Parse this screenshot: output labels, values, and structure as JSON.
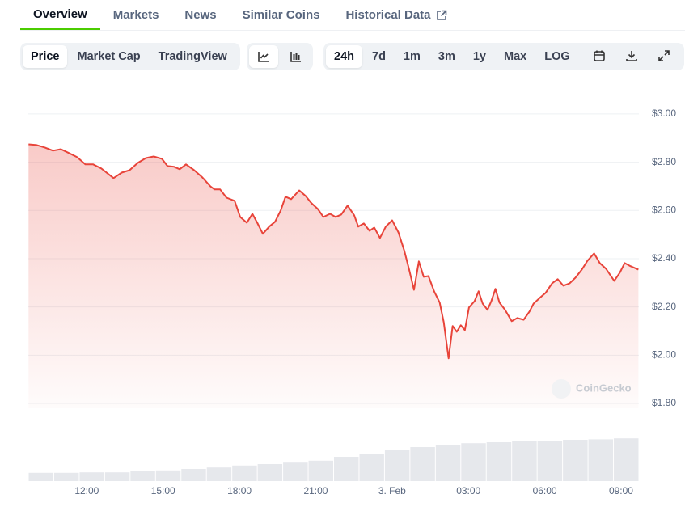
{
  "tabs": [
    {
      "label": "Overview",
      "active": true
    },
    {
      "label": "Markets",
      "active": false
    },
    {
      "label": "News",
      "active": false
    },
    {
      "label": "Similar Coins",
      "active": false
    },
    {
      "label": "Historical Data",
      "active": false
    }
  ],
  "toolbar": {
    "views": [
      {
        "label": "Price",
        "active": true
      },
      {
        "label": "Market Cap",
        "active": false
      },
      {
        "label": "TradingView",
        "active": false
      }
    ],
    "ranges": [
      {
        "label": "24h",
        "active": true
      },
      {
        "label": "7d",
        "active": false
      },
      {
        "label": "1m",
        "active": false
      },
      {
        "label": "3m",
        "active": false
      },
      {
        "label": "1y",
        "active": false
      },
      {
        "label": "Max",
        "active": false
      },
      {
        "label": "LOG",
        "active": false
      }
    ]
  },
  "watermark": "CoinGecko",
  "chart_data": {
    "type": "line",
    "area": true,
    "grid": true,
    "color": "#e8443a",
    "x": [
      9.71,
      10.03,
      10.35,
      10.67,
      10.98,
      11.3,
      11.62,
      11.94,
      12.25,
      12.57,
      13.05,
      13.37,
      13.68,
      14.0,
      14.32,
      14.63,
      14.95,
      15.17,
      15.43,
      15.65,
      15.9,
      16.22,
      16.54,
      16.86,
      17.02,
      17.24,
      17.49,
      17.81,
      18.03,
      18.29,
      18.51,
      18.7,
      18.92,
      19.17,
      19.4,
      19.62,
      19.81,
      20.03,
      20.35,
      20.6,
      20.83,
      21.08,
      21.3,
      21.56,
      21.78,
      22.0,
      22.25,
      22.51,
      22.67,
      22.89,
      23.11,
      23.3,
      23.52,
      23.75,
      24.0,
      24.25,
      24.48,
      24.67,
      24.86,
      25.05,
      25.24,
      25.43,
      25.65,
      25.87,
      26.03,
      26.22,
      26.38,
      26.54,
      26.7,
      26.86,
      27.02,
      27.24,
      27.4,
      27.56,
      27.75,
      27.9,
      28.06,
      28.22,
      28.44,
      28.7,
      28.92,
      29.17,
      29.4,
      29.56,
      29.81,
      30.03,
      30.29,
      30.51,
      30.73,
      30.98,
      31.21,
      31.46,
      31.68,
      31.94,
      32.16,
      32.41,
      32.73,
      32.95,
      33.14,
      33.37,
      33.68
    ],
    "values": [
      2.874,
      2.871,
      2.861,
      2.848,
      2.854,
      2.838,
      2.821,
      2.791,
      2.791,
      2.774,
      2.734,
      2.757,
      2.767,
      2.797,
      2.817,
      2.824,
      2.814,
      2.784,
      2.781,
      2.771,
      2.791,
      2.767,
      2.737,
      2.7,
      2.687,
      2.687,
      2.653,
      2.64,
      2.573,
      2.549,
      2.586,
      2.549,
      2.503,
      2.533,
      2.553,
      2.6,
      2.657,
      2.647,
      2.683,
      2.66,
      2.63,
      2.606,
      2.573,
      2.586,
      2.573,
      2.583,
      2.62,
      2.58,
      2.533,
      2.546,
      2.516,
      2.529,
      2.486,
      2.533,
      2.559,
      2.509,
      2.432,
      2.355,
      2.271,
      2.389,
      2.325,
      2.328,
      2.265,
      2.218,
      2.137,
      1.987,
      2.121,
      2.097,
      2.124,
      2.104,
      2.198,
      2.224,
      2.265,
      2.214,
      2.188,
      2.224,
      2.275,
      2.218,
      2.188,
      2.141,
      2.154,
      2.147,
      2.181,
      2.214,
      2.238,
      2.258,
      2.298,
      2.315,
      2.288,
      2.298,
      2.322,
      2.355,
      2.392,
      2.422,
      2.382,
      2.358,
      2.308,
      2.342,
      2.382,
      2.369,
      2.355
    ],
    "xlim": [
      9.7,
      33.7
    ],
    "ylim": [
      1.78,
      3.04
    ],
    "xticks": [
      {
        "value": 12,
        "label": "12:00"
      },
      {
        "value": 15,
        "label": "15:00"
      },
      {
        "value": 18,
        "label": "18:00"
      },
      {
        "value": 21,
        "label": "21:00"
      },
      {
        "value": 24,
        "label": "3. Feb"
      },
      {
        "value": 27,
        "label": "03:00"
      },
      {
        "value": 30,
        "label": "06:00"
      },
      {
        "value": 33,
        "label": "09:00"
      }
    ],
    "yticks": [
      {
        "value": 3,
        "label": "$3.00"
      },
      {
        "value": 2.8,
        "label": "$2.80"
      },
      {
        "value": 2.6,
        "label": "$2.60"
      },
      {
        "value": 2.4,
        "label": "$2.40"
      },
      {
        "value": 2.2,
        "label": "$2.20"
      },
      {
        "value": 2,
        "label": "$2.00"
      },
      {
        "value": 1.8,
        "label": "$1.80"
      }
    ],
    "volume": {
      "color": "#e6e8ec",
      "axis": "y2",
      "values": [
        17,
        17,
        18,
        18,
        20,
        22,
        25,
        28,
        32,
        35,
        38,
        42,
        50,
        55,
        65,
        70,
        75,
        78,
        80,
        82,
        83,
        85,
        86,
        88
      ]
    },
    "y2lim": [
      0,
      100
    ]
  }
}
